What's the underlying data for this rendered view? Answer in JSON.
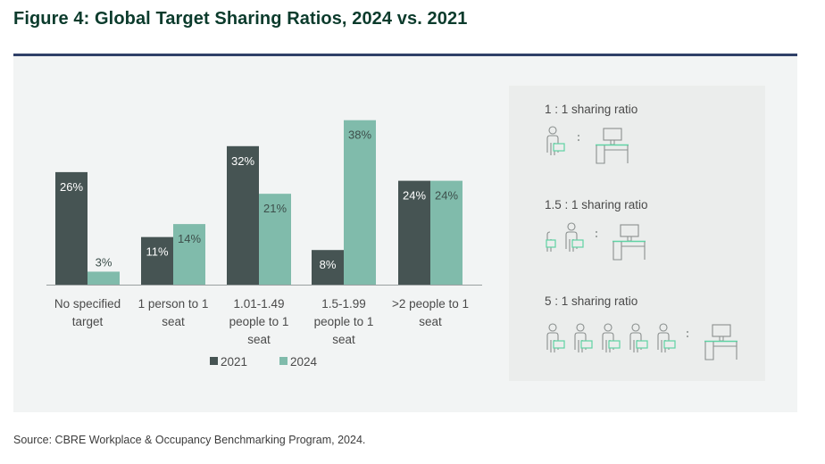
{
  "title": "Figure 4: Global Target Sharing Ratios, 2024 vs. 2021",
  "source": "Source: CBRE Workplace & Occupancy Benchmarking Program, 2024.",
  "colors": {
    "series_2021": "#465453",
    "series_2024": "#80bbab",
    "title": "#0b3b2c",
    "rule": "#2f4068",
    "icon_accent": "#5fd3a4"
  },
  "chart_data": {
    "type": "bar",
    "title": "Global Target Sharing Ratios, 2024 vs. 2021",
    "xlabel": "",
    "ylabel": "",
    "ylim": [
      0,
      40
    ],
    "grid": false,
    "legend_position": "bottom",
    "categories": [
      [
        "No specified",
        "target"
      ],
      [
        "1 person to 1",
        "seat"
      ],
      [
        "1.01-1.49",
        "people to 1",
        "seat"
      ],
      [
        "1.5-1.99",
        "people to 1",
        "seat"
      ],
      [
        ">2 people to 1",
        "seat"
      ]
    ],
    "series": [
      {
        "name": "2021",
        "values": [
          26,
          11,
          32,
          8,
          24
        ],
        "labels": [
          "26%",
          "11%",
          "32%",
          "8%",
          "24%"
        ]
      },
      {
        "name": "2024",
        "values": [
          3,
          14,
          21,
          38,
          24
        ],
        "labels": [
          "3%",
          "14%",
          "21%",
          "38%",
          "24%"
        ]
      }
    ]
  },
  "legend": [
    {
      "label": "2021"
    },
    {
      "label": "2024"
    }
  ],
  "ratios": [
    {
      "label": "1 : 1 sharing ratio",
      "people": 1,
      "partial": false
    },
    {
      "label": "1.5 : 1 sharing ratio",
      "people": 1,
      "partial": true
    },
    {
      "label": "5 : 1 sharing ratio",
      "people": 5,
      "partial": false
    }
  ],
  "icons": {
    "person": "person-with-laptop-icon",
    "desk": "desk-with-monitor-icon",
    "separator": ":"
  }
}
